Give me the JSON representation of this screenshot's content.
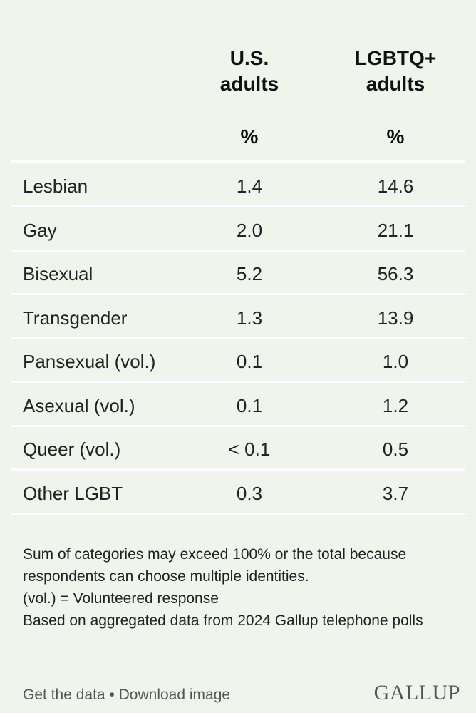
{
  "chart_data": {
    "type": "table",
    "columns": [
      {
        "header": "U.S. adults",
        "unit": "%"
      },
      {
        "header": "LGBTQ+ adults",
        "unit": "%"
      }
    ],
    "rows": [
      {
        "label": "Lesbian",
        "values": [
          "1.4",
          "14.6"
        ]
      },
      {
        "label": "Gay",
        "values": [
          "2.0",
          "21.1"
        ]
      },
      {
        "label": "Bisexual",
        "values": [
          "5.2",
          "56.3"
        ]
      },
      {
        "label": "Transgender",
        "values": [
          "1.3",
          "13.9"
        ]
      },
      {
        "label": "Pansexual (vol.)",
        "values": [
          "0.1",
          "1.0"
        ]
      },
      {
        "label": "Asexual (vol.)",
        "values": [
          "0.1",
          "1.2"
        ]
      },
      {
        "label": "Queer (vol.)",
        "values": [
          "< 0.1",
          "0.5"
        ]
      },
      {
        "label": "Other LGBT",
        "values": [
          "0.3",
          "3.7"
        ]
      }
    ]
  },
  "header": {
    "col1_line1": "U.S.",
    "col1_line2": "adults",
    "col2_line1": "LGBTQ+",
    "col2_line2": "adults",
    "col1_unit": "%",
    "col2_unit": "%"
  },
  "notes": [
    "Sum of categories may exceed 100% or the total because respondents can choose multiple identities.",
    "(vol.) = Volunteered response",
    "Based on aggregated data from 2024 Gallup telephone polls"
  ],
  "footer": {
    "get_data": "Get the data",
    "separator": "•",
    "download": "Download image",
    "logo": "GALLUP"
  },
  "colors": {
    "background": "#eff5ec",
    "rule": "#ffffff",
    "text": "#222222"
  }
}
